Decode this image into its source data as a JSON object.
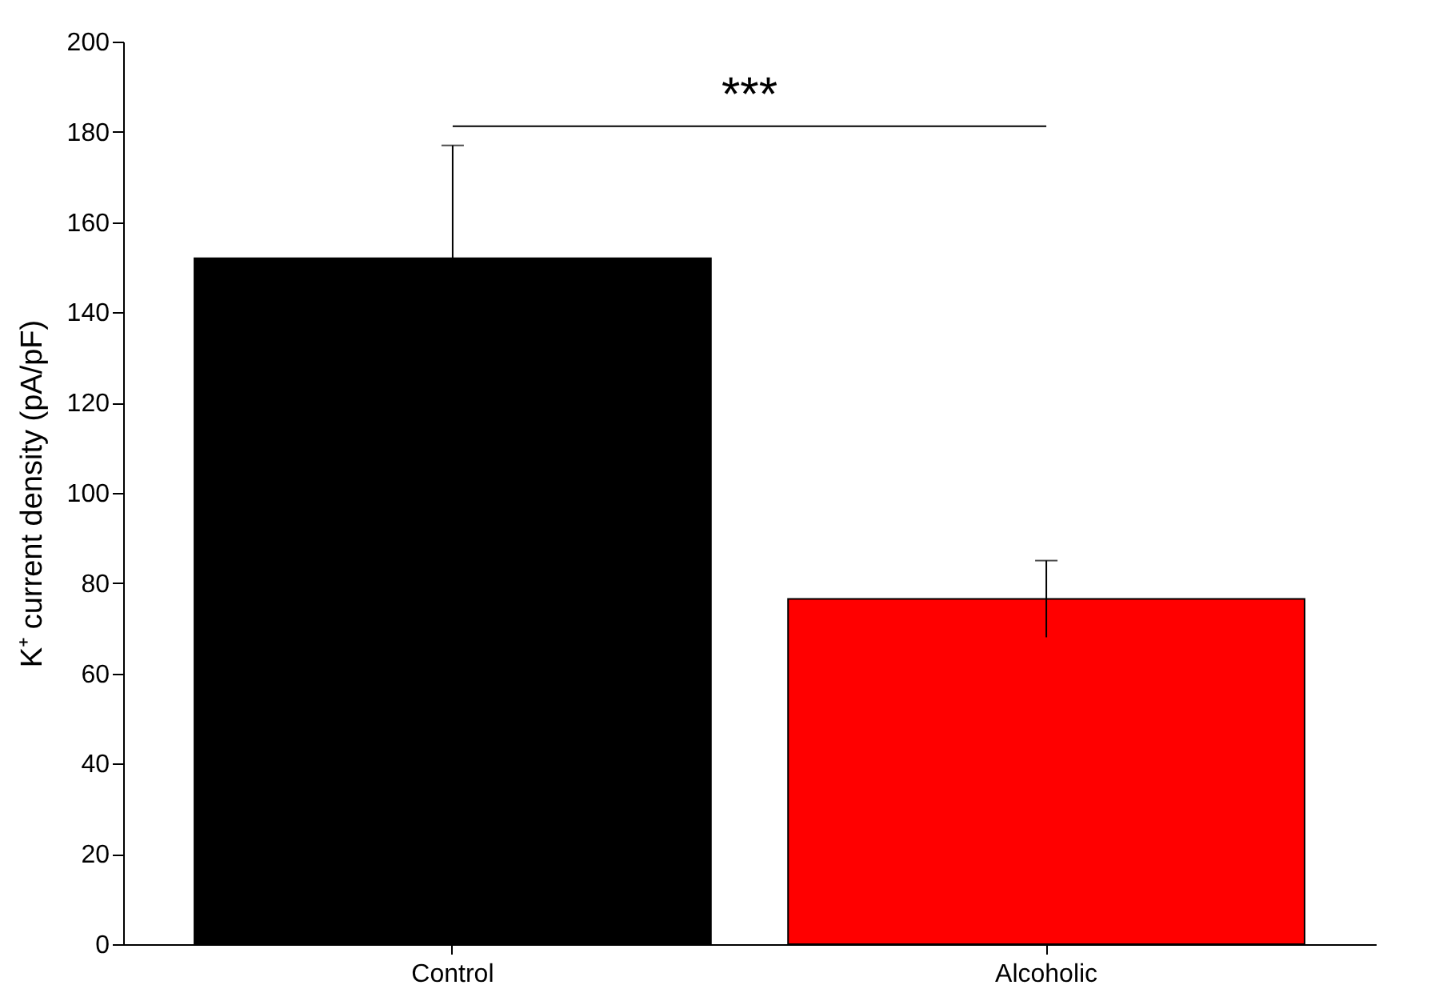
{
  "chart_data": {
    "type": "bar",
    "ylabel": "K⁺ current density (pA/pF)",
    "categories": [
      "Control",
      "Alcoholic"
    ],
    "values": [
      152,
      76.5
    ],
    "colors": [
      "#000000",
      "#ff0000"
    ],
    "errors": [
      25,
      8.5
    ],
    "ylim": [
      0,
      200
    ],
    "yticks": [
      0,
      20,
      40,
      60,
      80,
      100,
      120,
      140,
      160,
      180,
      200
    ],
    "grid": false,
    "annotations": [
      "***"
    ]
  }
}
